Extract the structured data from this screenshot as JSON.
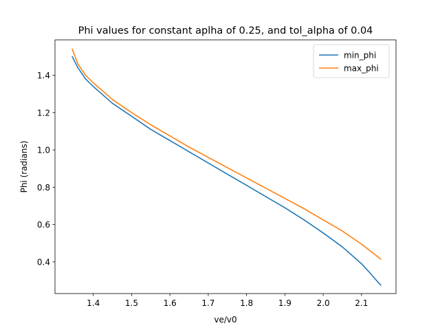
{
  "chart_data": {
    "type": "line",
    "title": "Phi values for constant aplha of 0.25, and tol_alpha of 0.04",
    "xlabel": "ve/v0",
    "ylabel": "Phi (radians)",
    "xlim": [
      1.3,
      2.19
    ],
    "ylim": [
      0.23,
      1.59
    ],
    "xticks": [
      1.4,
      1.5,
      1.6,
      1.7,
      1.8,
      1.9,
      2.0,
      2.1
    ],
    "xtick_labels": [
      "1.4",
      "1.5",
      "1.6",
      "1.7",
      "1.8",
      "1.9",
      "2.0",
      "2.1"
    ],
    "yticks": [
      0.4,
      0.6,
      0.8,
      1.0,
      1.2,
      1.4
    ],
    "ytick_labels": [
      "0.4",
      "0.6",
      "0.8",
      "1.0",
      "1.2",
      "1.4"
    ],
    "grid": false,
    "legend_position": "top-right",
    "series": [
      {
        "name": "min_phi",
        "color": "#1f77b4",
        "x": [
          1.345,
          1.36,
          1.38,
          1.4,
          1.45,
          1.5,
          1.55,
          1.6,
          1.65,
          1.7,
          1.75,
          1.8,
          1.85,
          1.9,
          1.95,
          2.0,
          2.05,
          2.1,
          2.12,
          2.15
        ],
        "y": [
          1.5,
          1.44,
          1.38,
          1.34,
          1.25,
          1.18,
          1.11,
          1.05,
          0.99,
          0.93,
          0.87,
          0.81,
          0.75,
          0.69,
          0.625,
          0.555,
          0.48,
          0.39,
          0.345,
          0.275
        ]
      },
      {
        "name": "max_phi",
        "color": "#ff7f0e",
        "x": [
          1.345,
          1.36,
          1.38,
          1.4,
          1.45,
          1.5,
          1.55,
          1.6,
          1.65,
          1.7,
          1.75,
          1.8,
          1.85,
          1.9,
          1.95,
          2.0,
          2.05,
          2.1,
          2.15
        ],
        "y": [
          1.54,
          1.46,
          1.4,
          1.36,
          1.27,
          1.2,
          1.135,
          1.075,
          1.015,
          0.96,
          0.905,
          0.85,
          0.795,
          0.74,
          0.685,
          0.625,
          0.565,
          0.495,
          0.415
        ]
      }
    ]
  }
}
